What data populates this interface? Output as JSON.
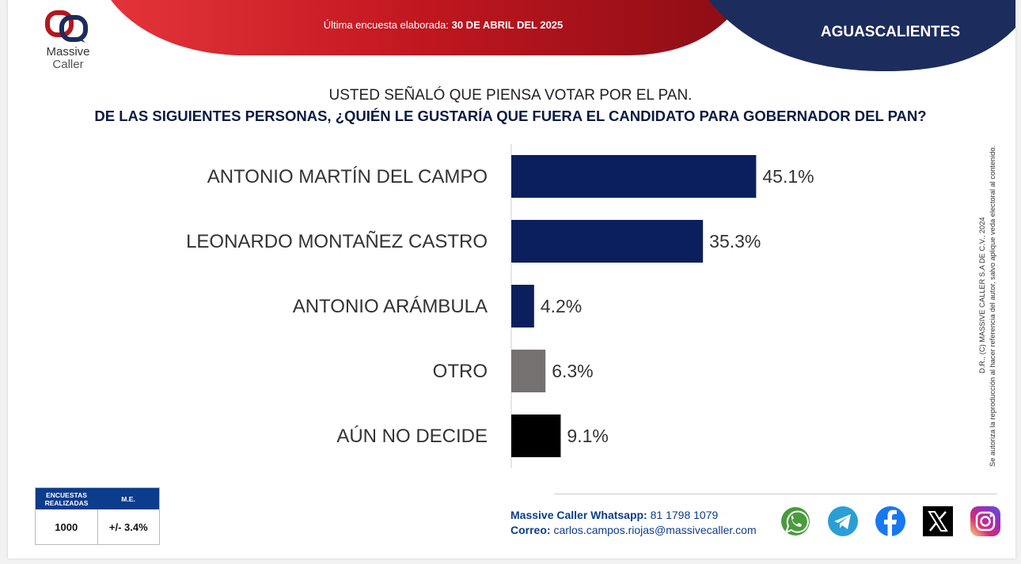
{
  "header": {
    "banner_label": "Última encuesta elaborada:",
    "banner_date": "30 DE ABRIL DEL 2025",
    "region": "AGUASCALIENTES",
    "brand_name": "Massive",
    "brand_sub": "Caller"
  },
  "question": {
    "line1": "USTED SEÑALÓ QUE PIENSA VOTAR POR EL PAN.",
    "line2": "DE LAS SIGUIENTES PERSONAS,  ¿QUIÉN LE GUSTARÍA QUE FUERA EL CANDIDATO PARA GOBERNADOR DEL PAN?"
  },
  "chart_data": {
    "type": "bar",
    "orientation": "horizontal",
    "categories": [
      "ANTONIO MARTÍN DEL CAMPO",
      "LEONARDO MONTAÑEZ CASTRO",
      "ANTONIO ARÁMBULA",
      "OTRO",
      "AÚN NO DECIDE"
    ],
    "values": [
      45.1,
      35.3,
      4.2,
      6.3,
      9.1
    ],
    "labels": [
      "45.1%",
      "35.3%",
      "4.2%",
      "6.3%",
      "9.1%"
    ],
    "colors": [
      "#0b1f5e",
      "#0b1f5e",
      "#0b1f5e",
      "#767171",
      "#000000"
    ],
    "xlim": [
      0,
      50
    ],
    "grid": false,
    "legend": "none"
  },
  "side_note": {
    "line1": "D.R., (C) MASSIVE CALLER S.A DE C.V., 2024",
    "line2": "Se autoriza la reproducción al hacer referencia del autor, salvo aplique veda electoral al contenido."
  },
  "stats": {
    "header_surveys": "ENCUESTAS REALIZADAS",
    "header_margin": "M.E.",
    "surveys": "1000",
    "margin": "+/- 3.4%"
  },
  "contact": {
    "whatsapp_label": "Massive Caller Whatsapp:",
    "whatsapp_number": "81 1798 1079",
    "email_label": "Correo:",
    "email": "carlos.campos.riojas@massivecaller.com"
  },
  "colors": {
    "navy": "#1c2c5c",
    "red": "#c0161f",
    "accent_blue": "#0c3c8c"
  },
  "social_icons": [
    "whatsapp-icon",
    "telegram-icon",
    "facebook-icon",
    "x-icon",
    "instagram-icon"
  ]
}
